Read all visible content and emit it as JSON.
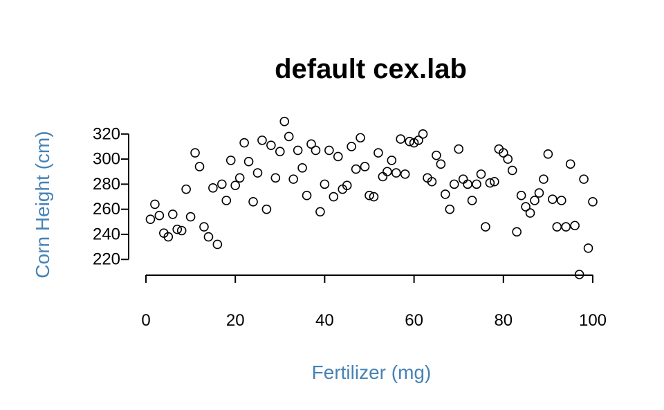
{
  "chart_data": {
    "type": "scatter",
    "title": "default cex.lab",
    "xlabel": "Fertilizer (mg)",
    "ylabel": "Corn Height (cm)",
    "label_color": "#4682B4",
    "xlim": [
      0,
      100
    ],
    "ylim": [
      208,
      321
    ],
    "xticks": [
      "0",
      "20",
      "40",
      "60",
      "80",
      "100"
    ],
    "yticks": [
      "220",
      "240",
      "260",
      "280",
      "300",
      "320"
    ],
    "grid": false,
    "x": [
      1,
      2,
      3,
      4,
      5,
      6,
      7,
      8,
      9,
      10,
      11,
      12,
      13,
      14,
      15,
      16,
      17,
      18,
      19,
      20,
      21,
      22,
      23,
      24,
      25,
      26,
      27,
      28,
      29,
      30,
      31,
      32,
      33,
      34,
      35,
      36,
      37,
      38,
      39,
      40,
      41,
      42,
      43,
      44,
      45,
      46,
      47,
      48,
      49,
      50,
      51,
      52,
      53,
      54,
      55,
      56,
      57,
      58,
      59,
      60,
      61,
      62,
      63,
      64,
      65,
      66,
      67,
      68,
      69,
      70,
      71,
      72,
      73,
      74,
      75,
      76,
      77,
      78,
      79,
      80,
      81,
      82,
      83,
      84,
      85,
      86,
      87,
      88,
      89,
      90,
      91,
      92,
      93,
      94,
      95,
      96,
      97,
      98,
      99,
      100
    ],
    "y": [
      252,
      264,
      255,
      241,
      238,
      256,
      244,
      243,
      276,
      254,
      305,
      294,
      246,
      238,
      277,
      232,
      280,
      267,
      299,
      279,
      285,
      313,
      298,
      266,
      289,
      315,
      260,
      311,
      285,
      306,
      330,
      318,
      284,
      307,
      293,
      271,
      312,
      307,
      258,
      280,
      307,
      270,
      302,
      276,
      279,
      310,
      292,
      317,
      294,
      271,
      270,
      305,
      286,
      290,
      299,
      289,
      316,
      288,
      314,
      313,
      315,
      320,
      285,
      282,
      303,
      296,
      272,
      260,
      280,
      308,
      284,
      280,
      267,
      280,
      288,
      246,
      281,
      282,
      308,
      305,
      300,
      291,
      242,
      271,
      262,
      257,
      267,
      273,
      284,
      304,
      268,
      246,
      267,
      246,
      296,
      247,
      208,
      284,
      229,
      266
    ]
  }
}
